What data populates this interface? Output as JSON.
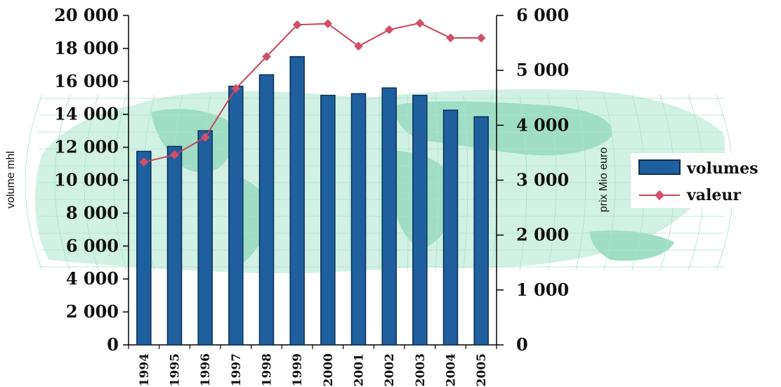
{
  "chart_data": {
    "type": "bar+line",
    "categories": [
      "1994",
      "1995",
      "1996",
      "1997",
      "1998",
      "1999",
      "2000",
      "2001",
      "2002",
      "2003",
      "2004",
      "2005"
    ],
    "series": [
      {
        "name": "volumes",
        "type": "bar",
        "axis": "left",
        "values": [
          11750,
          12050,
          13000,
          15700,
          16400,
          17500,
          15150,
          15250,
          15600,
          15150,
          14250,
          13850
        ]
      },
      {
        "name": "valeur",
        "type": "line",
        "axis": "right",
        "values": [
          3330,
          3460,
          3780,
          4670,
          5250,
          5830,
          5850,
          5440,
          5740,
          5860,
          5590,
          5590
        ]
      }
    ],
    "ylabel": "volume mhl",
    "y2label": "prix Mio euro",
    "ylim": [
      0,
      20000
    ],
    "y2lim": [
      0,
      6000
    ],
    "yticks": [
      "0",
      "2 000",
      "4 000",
      "6 000",
      "8 000",
      "10 000",
      "12 000",
      "14 000",
      "16 000",
      "18 000",
      "20 000"
    ],
    "y2ticks": [
      "0",
      "1 000",
      "2 000",
      "3 000",
      "4 000",
      "5 000",
      "6 000"
    ],
    "legend_position": "right",
    "grid": false,
    "colors": {
      "bars": "#1f5f9e",
      "bar_edge": "#0d2f57",
      "line": "#c7455a",
      "background_map": "#a9e3cc"
    }
  }
}
